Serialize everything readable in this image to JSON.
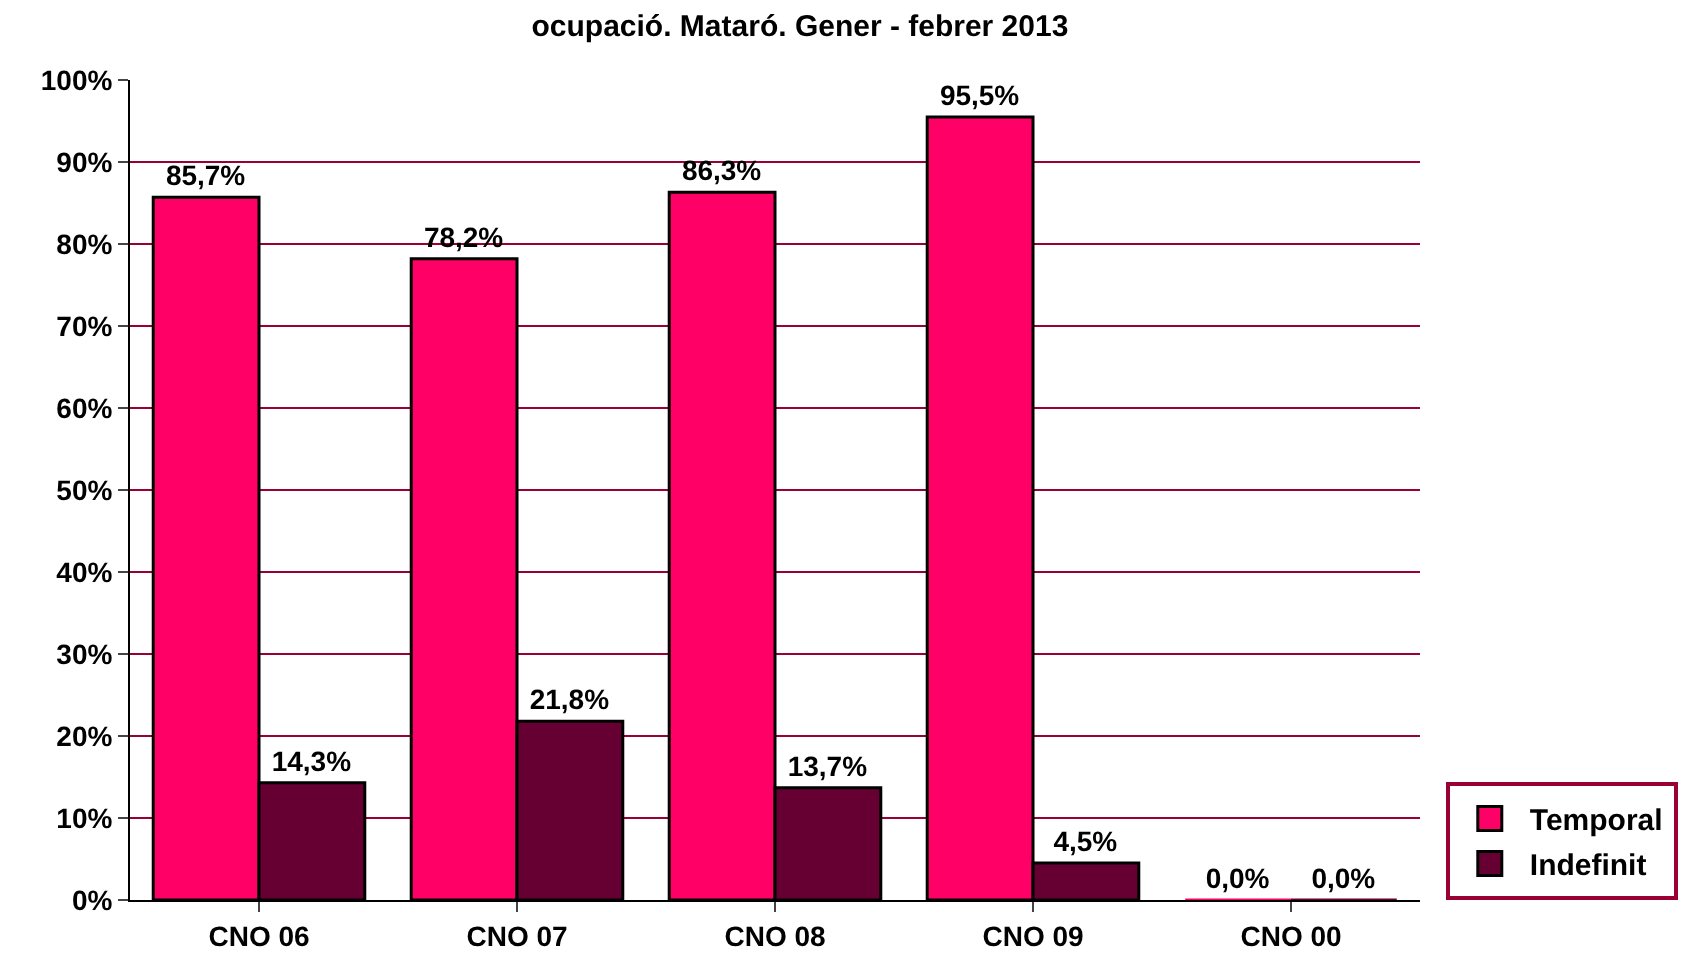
{
  "chart_data": {
    "type": "bar",
    "title": "ocupació. Mataró. Gener - febrer 2013",
    "categories": [
      "CNO 06",
      "CNO 07",
      "CNO 08",
      "CNO 09",
      "CNO 00"
    ],
    "series": [
      {
        "name": "Temporal",
        "color": "#ff0066",
        "values": [
          85.7,
          78.2,
          86.3,
          95.5,
          0.0
        ],
        "value_labels": [
          "85,7%",
          "78,2%",
          "86,3%",
          "95,5%",
          "0,0%"
        ]
      },
      {
        "name": "Indefinit",
        "color": "#660033",
        "values": [
          14.3,
          21.8,
          13.7,
          4.5,
          0.0
        ],
        "value_labels": [
          "14,3%",
          "21,8%",
          "13,7%",
          "4,5%",
          "0,0%"
        ]
      }
    ],
    "ylim": [
      0,
      100
    ],
    "yticks": [
      {
        "value": 0,
        "label": "0%"
      },
      {
        "value": 10,
        "label": "10%"
      },
      {
        "value": 20,
        "label": "20%"
      },
      {
        "value": 30,
        "label": "30%"
      },
      {
        "value": 40,
        "label": "40%"
      },
      {
        "value": 50,
        "label": "50%"
      },
      {
        "value": 60,
        "label": "60%"
      },
      {
        "value": 70,
        "label": "70%"
      },
      {
        "value": 80,
        "label": "80%"
      },
      {
        "value": 90,
        "label": "90%"
      },
      {
        "value": 100,
        "label": "100%"
      }
    ],
    "grid": "y",
    "legend": "right"
  }
}
